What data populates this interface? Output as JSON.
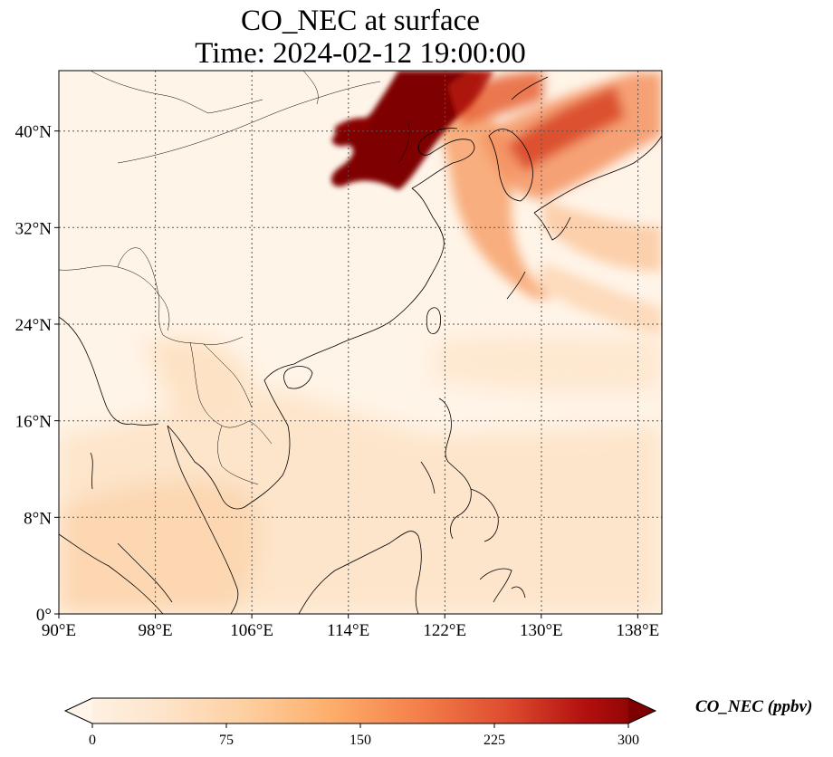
{
  "title": {
    "line1": "CO_NEC at surface",
    "line2": "Time: 2024-02-12 19:00:00"
  },
  "map": {
    "region": "East Asia / South China Sea",
    "projection": "PlateCarree",
    "lon_range": [
      90,
      140
    ],
    "lat_range": [
      0,
      45
    ],
    "gridlines": "dotted",
    "lon_ticks": [
      {
        "value": 90,
        "label": "90°E"
      },
      {
        "value": 98,
        "label": "98°E"
      },
      {
        "value": 106,
        "label": "106°E"
      },
      {
        "value": 114,
        "label": "114°E"
      },
      {
        "value": 122,
        "label": "122°E"
      },
      {
        "value": 130,
        "label": "130°E"
      },
      {
        "value": 138,
        "label": "138°E"
      }
    ],
    "lat_ticks": [
      {
        "value": 0,
        "label": "0°"
      },
      {
        "value": 8,
        "label": "8°N"
      },
      {
        "value": 16,
        "label": "16°N"
      },
      {
        "value": 24,
        "label": "24°N"
      },
      {
        "value": 32,
        "label": "32°N"
      },
      {
        "value": 40,
        "label": "40°N"
      }
    ],
    "field_colors": {
      "background": "#fff5ea",
      "low": "#fde5c8",
      "mid": "#fdae6b",
      "high": "#e3572a",
      "max": "#7f0000"
    }
  },
  "colorbar": {
    "label": "CO_NEC (ppbv)",
    "min": 0,
    "max": 300,
    "extend": "both",
    "colormap": "OrRd-like",
    "stops": [
      "#fff5eb",
      "#fee6ce",
      "#fdd0a2",
      "#fdae6b",
      "#fd8d3c",
      "#e6550d",
      "#c4161c",
      "#7f0000"
    ],
    "ticks": [
      {
        "value": 0,
        "label": "0"
      },
      {
        "value": 75,
        "label": "75"
      },
      {
        "value": 150,
        "label": "150"
      },
      {
        "value": 225,
        "label": "225"
      },
      {
        "value": 300,
        "label": "300"
      }
    ]
  }
}
